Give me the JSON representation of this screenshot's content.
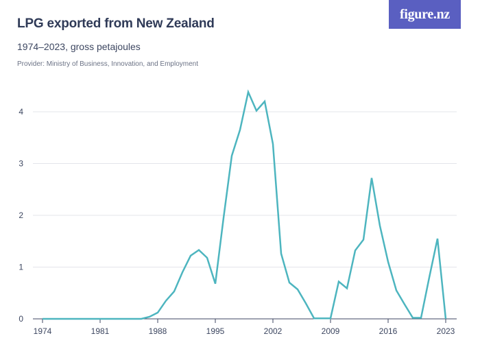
{
  "header": {
    "title": "LPG exported from New Zealand",
    "subtitle": "1974–2023, gross petajoules",
    "provider": "Provider: Ministry of Business, Innovation, and Employment",
    "logo_text": "figure.nz"
  },
  "colors": {
    "line": "#4db5bf",
    "grid": "#e3e4ea",
    "axis": "#3c4660",
    "logo_bg": "#5a5fc1"
  },
  "chart_data": {
    "type": "line",
    "title": "LPG exported from New Zealand",
    "subtitle": "1974–2023, gross petajoules",
    "xlabel": "",
    "ylabel": "",
    "xlim": [
      1974,
      2023
    ],
    "ylim": [
      0,
      4.4
    ],
    "grid": true,
    "x_ticks": [
      1974,
      1981,
      1988,
      1995,
      2002,
      2009,
      2016,
      2023
    ],
    "y_ticks": [
      0,
      1,
      2,
      3,
      4
    ],
    "series": [
      {
        "x": [
          1974,
          1975,
          1976,
          1977,
          1978,
          1979,
          1980,
          1981,
          1982,
          1983,
          1984,
          1985,
          1986,
          1987,
          1988,
          1989,
          1990,
          1991,
          1992,
          1993,
          1994,
          1995,
          1996,
          1997,
          1998,
          1999,
          2000,
          2001,
          2002,
          2003,
          2004,
          2005,
          2006,
          2007,
          2008,
          2009,
          2010,
          2011,
          2012,
          2013,
          2014,
          2015,
          2016,
          2017,
          2018,
          2019,
          2020,
          2021,
          2022,
          2023
        ],
        "values": [
          0,
          0,
          0,
          0,
          0,
          0,
          0,
          0,
          0,
          0,
          0,
          0,
          0,
          0.04,
          0.12,
          0.35,
          0.53,
          0.9,
          1.22,
          1.33,
          1.18,
          0.68,
          1.95,
          3.15,
          3.65,
          4.38,
          4.02,
          4.2,
          3.38,
          1.26,
          0.7,
          0.57,
          0.3,
          0.01,
          0.01,
          0.01,
          0.72,
          0.59,
          1.32,
          1.53,
          2.72,
          1.8,
          1.1,
          0.55,
          0.28,
          0.02,
          0.02,
          0.8,
          1.55,
          0
        ]
      }
    ]
  }
}
